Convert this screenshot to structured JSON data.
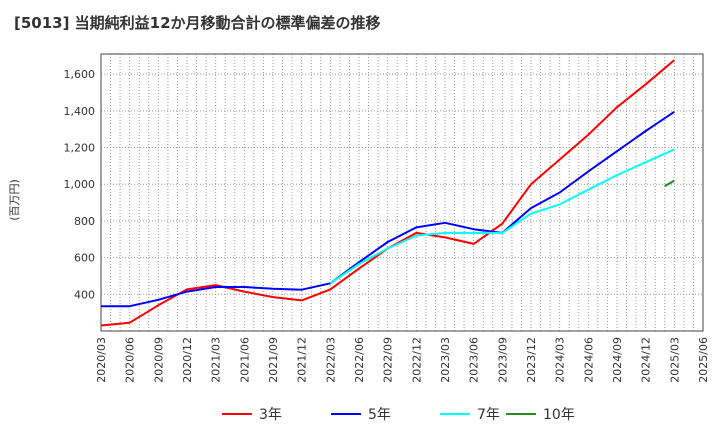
{
  "chart_data": {
    "type": "line",
    "title": "[5013]  当期純利益12か月移動合計の標準偏差の推移",
    "ylabel": "(百万円)",
    "xlabel": "",
    "ylim": [
      200,
      1710
    ],
    "yticks": [
      400,
      600,
      800,
      1000,
      1200,
      1400,
      1600
    ],
    "ytick_labels": [
      "400",
      "600",
      "800",
      "1,000",
      "1,200",
      "1,400",
      "1,600"
    ],
    "xticks": [
      "2020/03",
      "2020/06",
      "2020/09",
      "2020/12",
      "2021/03",
      "2021/06",
      "2021/09",
      "2021/12",
      "2022/03",
      "2022/06",
      "2022/09",
      "2022/12",
      "2023/03",
      "2023/06",
      "2023/09",
      "2023/12",
      "2024/03",
      "2024/06",
      "2024/09",
      "2024/12",
      "2025/03",
      "2025/06"
    ],
    "grid": true,
    "legend_position": "bottom",
    "series": [
      {
        "name": "3年",
        "color": "#ff0000",
        "x": [
          "2020/03",
          "2020/06",
          "2020/09",
          "2020/12",
          "2021/03",
          "2021/06",
          "2021/09",
          "2021/12",
          "2022/03",
          "2022/06",
          "2022/09",
          "2022/12",
          "2023/03",
          "2023/06",
          "2023/09",
          "2023/12",
          "2024/03",
          "2024/06",
          "2024/09",
          "2024/12",
          "2025/03"
        ],
        "values": [
          230,
          245,
          340,
          427,
          450,
          415,
          385,
          367,
          427,
          540,
          650,
          735,
          710,
          675,
          785,
          1000,
          1135,
          1270,
          1420,
          1545,
          1677
        ]
      },
      {
        "name": "5年",
        "color": "#0000ff",
        "x": [
          "2020/03",
          "2020/06",
          "2020/09",
          "2020/12",
          "2021/03",
          "2021/06",
          "2021/09",
          "2021/12",
          "2022/03",
          "2022/06",
          "2022/09",
          "2022/12",
          "2023/03",
          "2023/06",
          "2023/09",
          "2023/12",
          "2024/03",
          "2024/06",
          "2024/09",
          "2024/12",
          "2025/03"
        ],
        "values": [
          335,
          335,
          370,
          415,
          440,
          440,
          430,
          425,
          460,
          575,
          685,
          765,
          790,
          755,
          735,
          870,
          955,
          1070,
          1180,
          1290,
          1395
        ]
      },
      {
        "name": "7年",
        "color": "#00ffff",
        "x": [
          "2022/03",
          "2022/06",
          "2022/09",
          "2022/12",
          "2023/03",
          "2023/06",
          "2023/09",
          "2023/12",
          "2024/03",
          "2024/06",
          "2024/09",
          "2024/12",
          "2025/03"
        ],
        "values": [
          460,
          565,
          650,
          720,
          735,
          735,
          735,
          840,
          890,
          970,
          1050,
          1120,
          1190
        ]
      },
      {
        "name": "10年",
        "color": "#228b22",
        "x": [
          "2025/02",
          "2025/03"
        ],
        "values": [
          990,
          1020
        ]
      }
    ]
  }
}
